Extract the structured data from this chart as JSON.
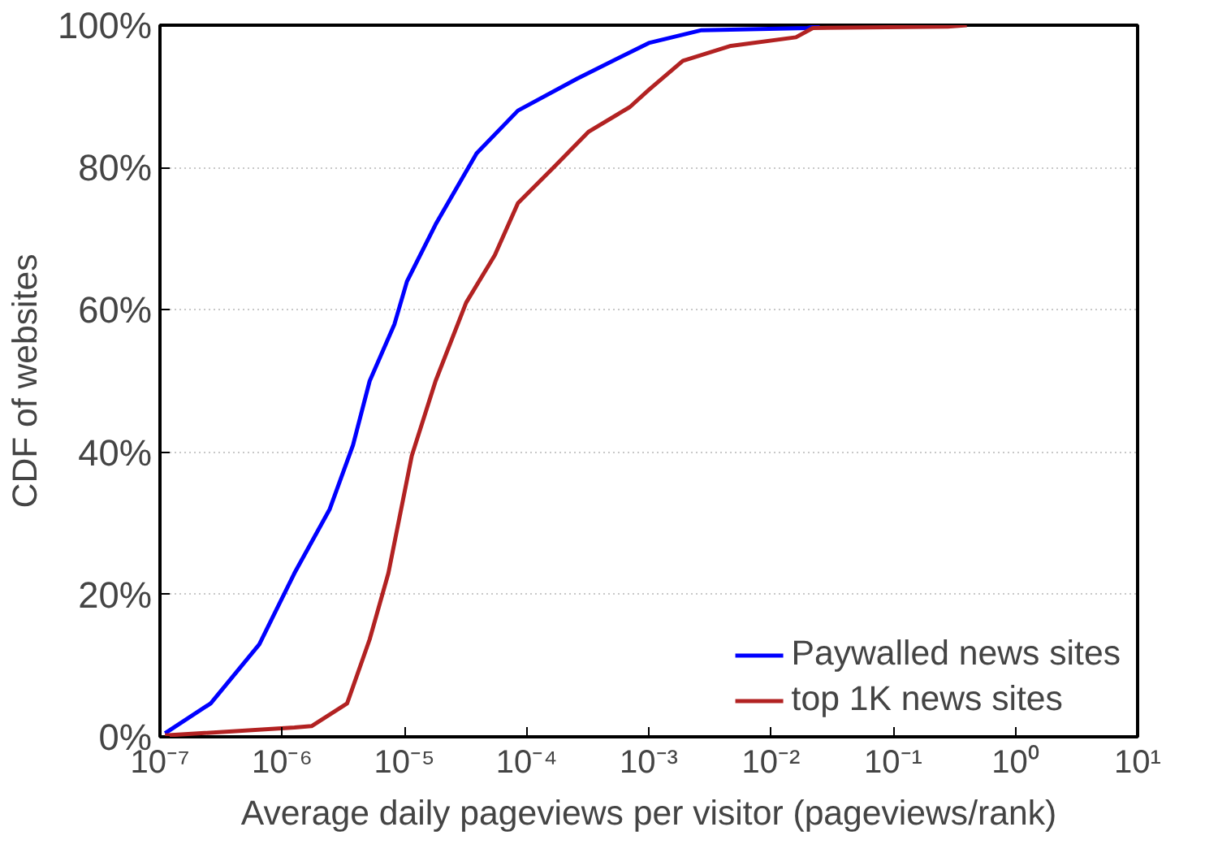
{
  "chart_data": {
    "type": "line",
    "xlabel": "Average daily pageviews per visitor (pageviews/rank)",
    "ylabel": "CDF of websites",
    "log": "x",
    "grid": "y",
    "legend": "bottom right",
    "line_style": "solid",
    "marker": "none",
    "xlim": [
      1e-07,
      10
    ],
    "ylim": [
      0,
      100
    ],
    "xticks": [
      {
        "value": 1e-07,
        "label": "10⁻⁷"
      },
      {
        "value": 1e-06,
        "label": "10⁻⁶"
      },
      {
        "value": 1e-05,
        "label": "10⁻⁵"
      },
      {
        "value": 0.0001,
        "label": "10⁻⁴"
      },
      {
        "value": 0.001,
        "label": "10⁻³"
      },
      {
        "value": 0.01,
        "label": "10⁻²"
      },
      {
        "value": 0.1,
        "label": "10⁻¹"
      },
      {
        "value": 1,
        "label": "10⁰"
      },
      {
        "value": 10,
        "label": "10¹"
      }
    ],
    "yticks": [
      {
        "value": 0,
        "label": "0%"
      },
      {
        "value": 20,
        "label": "20%"
      },
      {
        "value": 40,
        "label": "40%"
      },
      {
        "value": 60,
        "label": "60%"
      },
      {
        "value": 80,
        "label": "80%"
      },
      {
        "value": 100,
        "label": "100%"
      }
    ],
    "series": [
      {
        "name": "Paywalled news sites",
        "color": "#0000ff",
        "x": [
          1.1e-07,
          2.6e-07,
          6.5e-07,
          1.26e-06,
          2.45e-06,
          3.8e-06,
          5.2e-06,
          8.3e-06,
          1.05e-05,
          1.8e-05,
          3.9e-05,
          8.5e-05,
          0.00026,
          0.001,
          0.0027,
          0.02,
          0.025
        ],
        "values": [
          0.5,
          4.7,
          13,
          23,
          32,
          41,
          50,
          58,
          64,
          72,
          82,
          88,
          92.5,
          97.5,
          99.3,
          99.6,
          100
        ]
      },
      {
        "name": "top 1K news sites",
        "color": "#b22222",
        "x": [
          1.1e-07,
          1.26e-06,
          1.74e-06,
          3.4e-06,
          5.2e-06,
          7.4e-06,
          1.15e-05,
          1.8e-05,
          3.2e-05,
          5.5e-05,
          8.5e-05,
          0.000166,
          0.00032,
          0.0007,
          0.001,
          0.0019,
          0.0047,
          0.016,
          0.022,
          0.28,
          0.4
        ],
        "values": [
          0.2,
          1.3,
          1.5,
          4.7,
          13.7,
          23,
          39.5,
          50,
          61,
          67.7,
          75,
          80,
          85,
          88.5,
          90.9,
          95,
          97.1,
          98.3,
          99.6,
          99.8,
          100
        ]
      }
    ]
  }
}
